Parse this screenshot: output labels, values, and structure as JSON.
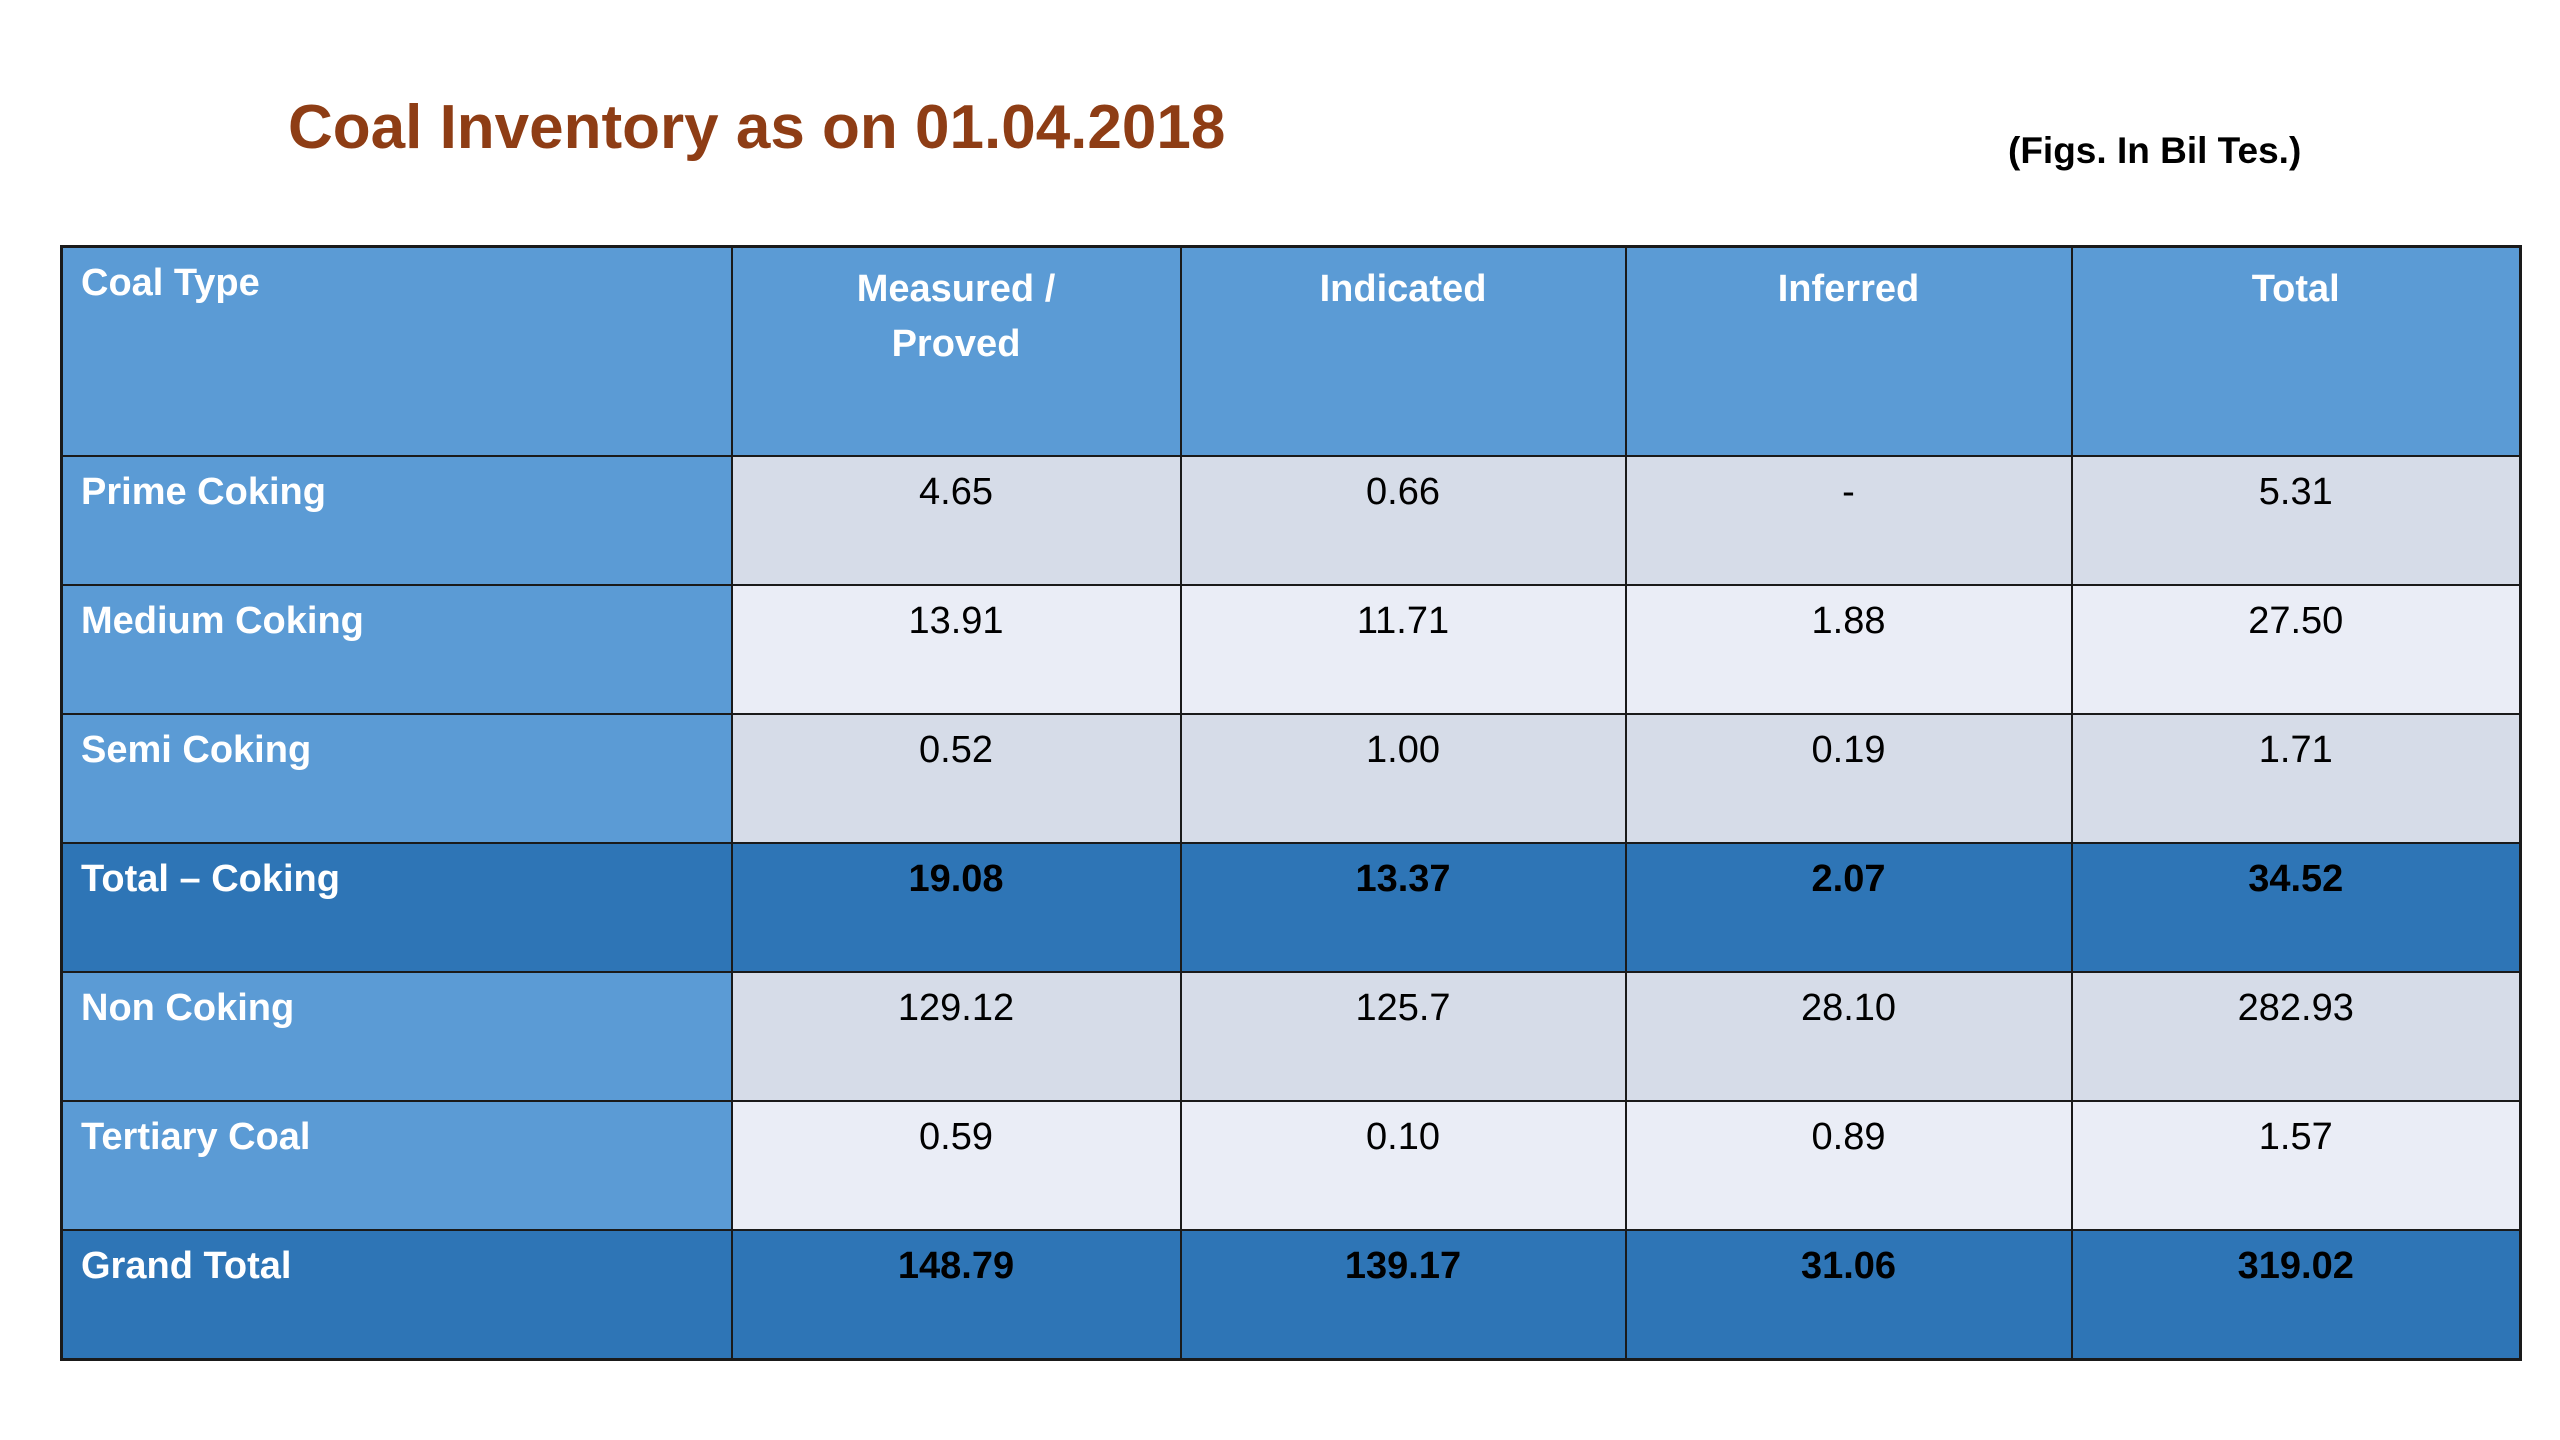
{
  "slide": {
    "title": "Coal Inventory as on 01.04.2018",
    "units_note": "(Figs. In Bil Tes.)"
  },
  "table": {
    "columns": [
      "Coal Type",
      "Measured / Proved",
      "Indicated",
      "Inferred",
      "Total"
    ],
    "rows": [
      {
        "label": "Prime Coking",
        "values": [
          "4.65",
          "0.66",
          "-",
          "5.31"
        ]
      },
      {
        "label": "Medium Coking",
        "values": [
          "13.91",
          "11.71",
          "1.88",
          "27.50"
        ]
      },
      {
        "label": "Semi Coking",
        "values": [
          "0.52",
          "1.00",
          "0.19",
          "1.71"
        ]
      },
      {
        "label": "Total – Coking",
        "values": [
          "19.08",
          "13.37",
          "2.07",
          "34.52"
        ]
      },
      {
        "label": "Non Coking",
        "values": [
          "129.12",
          "125.7",
          "28.10",
          "282.93"
        ]
      },
      {
        "label": "Tertiary Coal",
        "values": [
          "0.59",
          "0.10",
          "0.89",
          "1.57"
        ]
      },
      {
        "label": "Grand Total",
        "values": [
          "148.79",
          "139.17",
          "31.06",
          "319.02"
        ]
      }
    ]
  },
  "colors": {
    "title_brown": "#8E3D15",
    "header_blue": "#5B9BD5",
    "total_row_blue": "#2E75B6",
    "row_shade_a": "#D6DCE8",
    "row_shade_b": "#EAEDF6",
    "border_dark": "#1A1A1A",
    "header_text": "#FFFFFF",
    "value_text": "#000000"
  },
  "chart_data": {
    "type": "table",
    "title": "Coal Inventory as on 01.04.2018",
    "units_note": "(Figs. In Bil Tes.)",
    "columns": [
      "Coal Type",
      "Measured / Proved",
      "Indicated",
      "Inferred",
      "Total"
    ],
    "rows": [
      {
        "coal_type": "Prime Coking",
        "measured_proved": 4.65,
        "indicated": 0.66,
        "inferred": null,
        "total": 5.31,
        "inferred_display": "-"
      },
      {
        "coal_type": "Medium Coking",
        "measured_proved": 13.91,
        "indicated": 11.71,
        "inferred": 1.88,
        "total": 27.5
      },
      {
        "coal_type": "Semi Coking",
        "measured_proved": 0.52,
        "indicated": 1.0,
        "inferred": 0.19,
        "total": 1.71
      },
      {
        "coal_type": "Total – Coking",
        "measured_proved": 19.08,
        "indicated": 13.37,
        "inferred": 2.07,
        "total": 34.52,
        "is_summary": true
      },
      {
        "coal_type": "Non Coking",
        "measured_proved": 129.12,
        "indicated": 125.7,
        "inferred": 28.1,
        "total": 282.93
      },
      {
        "coal_type": "Tertiary Coal",
        "measured_proved": 0.59,
        "indicated": 0.1,
        "inferred": 0.89,
        "total": 1.57
      },
      {
        "coal_type": "Grand Total",
        "measured_proved": 148.79,
        "indicated": 139.17,
        "inferred": 31.06,
        "total": 319.02,
        "is_summary": true
      }
    ]
  }
}
